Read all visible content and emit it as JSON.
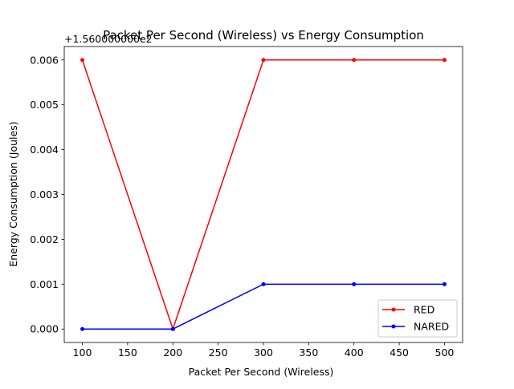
{
  "chart_data": {
    "type": "line",
    "title": "Packet Per Second (Wireless)  vs Energy Consumption",
    "xlabel": "Packet Per Second (Wireless)",
    "ylabel": "Energy Consumption (Joules)",
    "y_offset_label": "+1.560000000e2",
    "x": [
      100,
      200,
      300,
      400,
      500
    ],
    "xlim": [
      80,
      520
    ],
    "ylim": [
      -0.0003,
      0.0063
    ],
    "x_ticks": [
      100,
      150,
      200,
      250,
      300,
      350,
      400,
      450,
      500
    ],
    "y_ticks": [
      0.0,
      0.001,
      0.002,
      0.003,
      0.004,
      0.005,
      0.006
    ],
    "y_tick_labels": [
      "0.000",
      "0.001",
      "0.002",
      "0.003",
      "0.004",
      "0.005",
      "0.006"
    ],
    "series": [
      {
        "name": "RED",
        "color": "#ff0000",
        "values": [
          0.006,
          0.0,
          0.006,
          0.006,
          0.006
        ]
      },
      {
        "name": "NARED",
        "color": "#0000ff",
        "values": [
          0.0,
          0.0,
          0.001,
          0.001,
          0.001
        ]
      }
    ],
    "legend_position": "lower-right",
    "grid": false
  }
}
